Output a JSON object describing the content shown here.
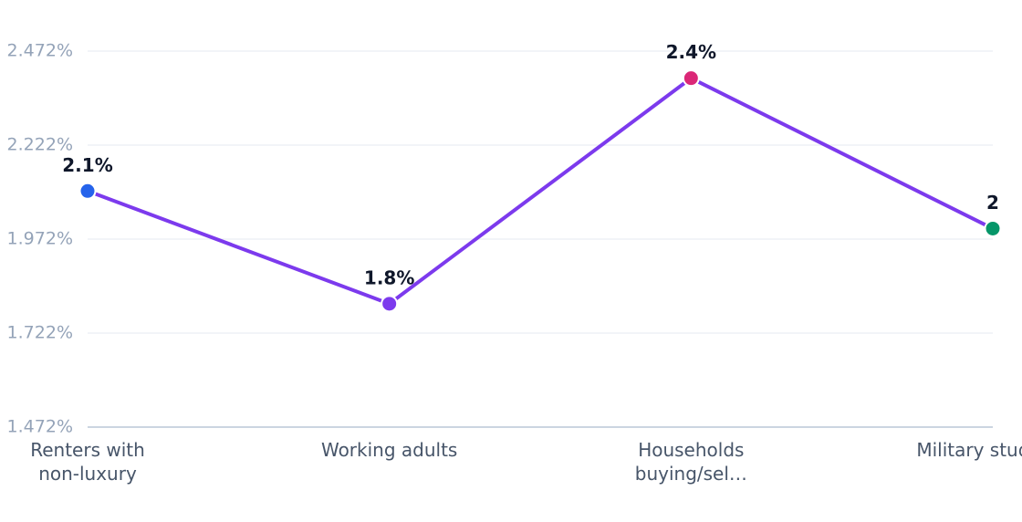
{
  "chart_data": {
    "type": "line",
    "categories": [
      "Renters with non-luxury",
      "Working adults",
      "Households buying/sel…",
      "Military students"
    ],
    "series": [
      {
        "name": "Share",
        "color": "#7c3aed",
        "values": [
          2.1,
          1.8,
          2.4,
          2.0
        ],
        "value_labels": [
          "2.1%",
          "1.8%",
          "2.4%",
          "2"
        ],
        "point_colors": [
          "#2563eb",
          "#7c3aed",
          "#db2777",
          "#059669"
        ]
      }
    ],
    "ylim": [
      1.472,
      2.472
    ],
    "yticks": [
      {
        "value": 1.472,
        "label": "1.472%"
      },
      {
        "value": 1.722,
        "label": "1.722%"
      },
      {
        "value": 1.972,
        "label": "1.972%"
      },
      {
        "value": 2.222,
        "label": "2.222%"
      },
      {
        "value": 2.472,
        "label": "2.472%"
      }
    ],
    "grid": true
  }
}
